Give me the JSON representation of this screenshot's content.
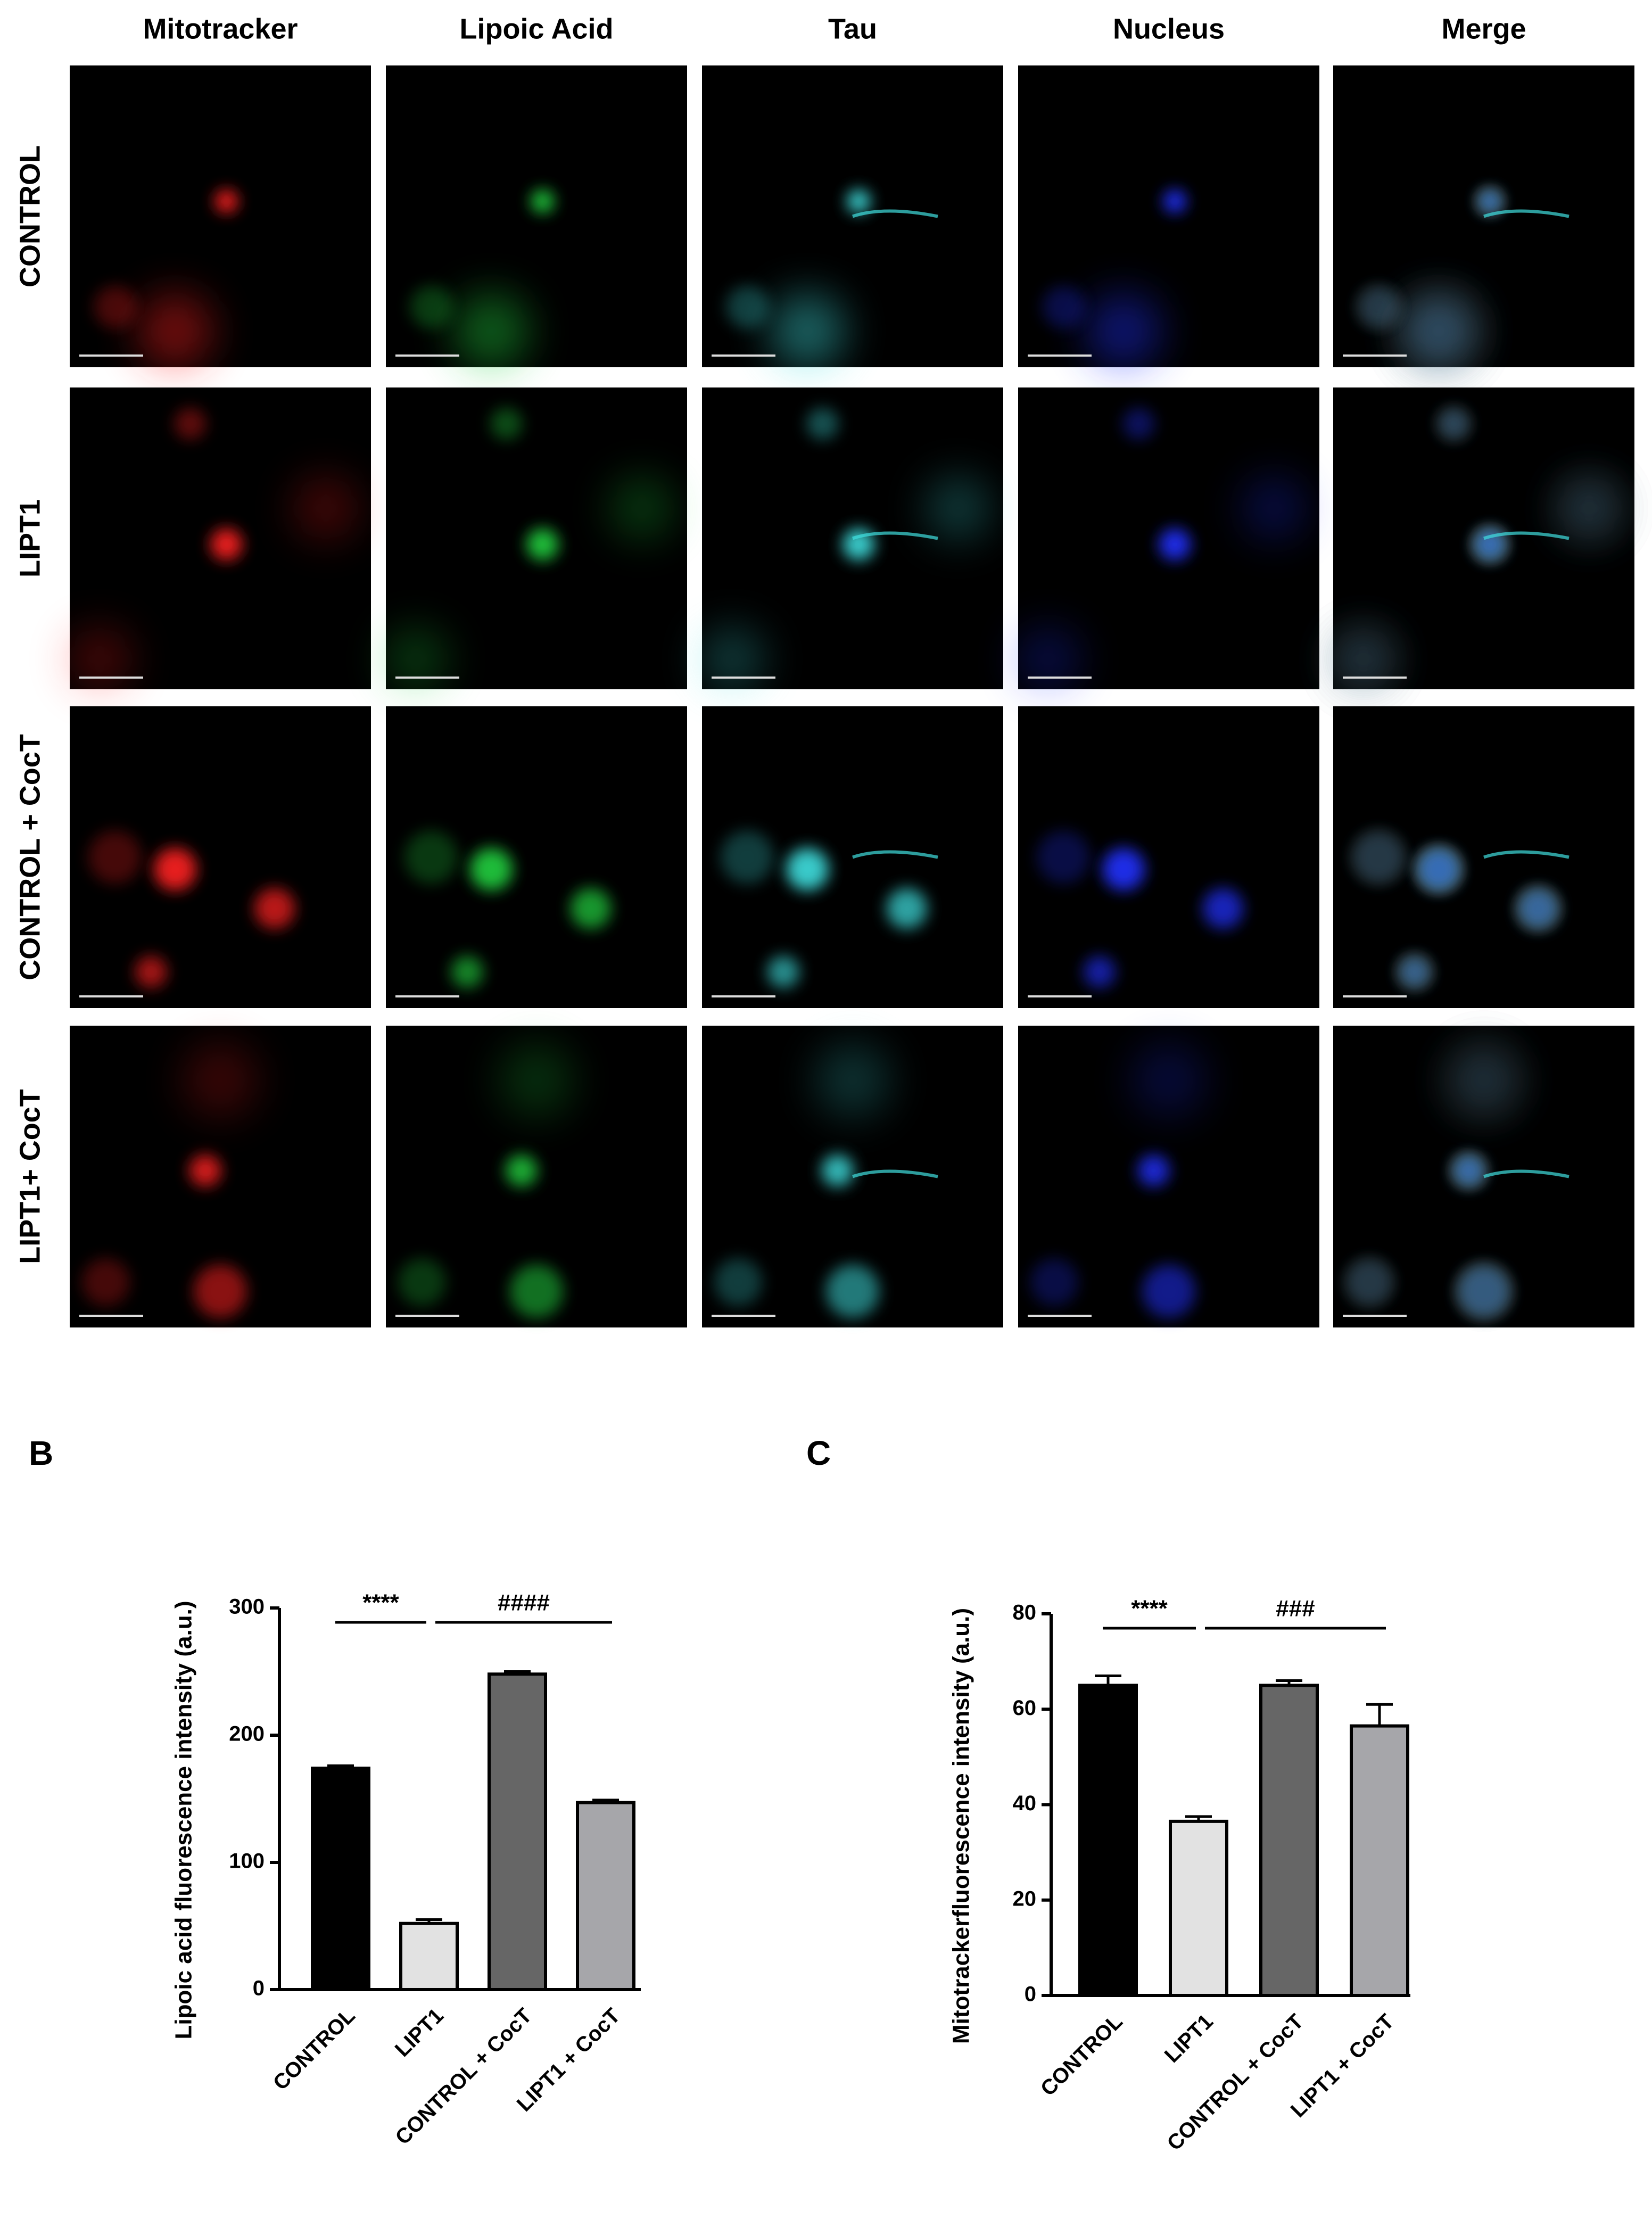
{
  "microscopy": {
    "columns": [
      "Mitotracker",
      "Lipoic Acid",
      "Tau",
      "Nucleus",
      "Merge"
    ],
    "rows": [
      "CONTROL",
      "LIPT1",
      "CONTROL + CocT",
      "LIPT1+ CocT"
    ]
  },
  "chart_data": [
    {
      "type": "bar",
      "label": "B",
      "ylabel": "Lipoic acid fluorescence intensity (a.u.)",
      "categories": [
        "CONTROL",
        "LIPT1",
        "CONTROL + CocT",
        "LIPT1 + CocT"
      ],
      "values": [
        174,
        52,
        248,
        147
      ],
      "errors": [
        2,
        3,
        2,
        2
      ],
      "colors": [
        "#000000",
        "#e2e2e2",
        "#666666",
        "#a6a6aa"
      ],
      "ylim": [
        0,
        300
      ],
      "yticks": [
        0,
        100,
        200,
        300
      ],
      "annotations": [
        "****",
        "####"
      ]
    },
    {
      "type": "bar",
      "label": "C",
      "ylabel": "Mitotrackerfluorescence intensity (a.u.)",
      "categories": [
        "CONTROL",
        "LIPT1",
        "CONTROL + CocT",
        "LIPT1 + CocT"
      ],
      "values": [
        65,
        36.5,
        65,
        56.5
      ],
      "errors": [
        2,
        1,
        1,
        4.5
      ],
      "colors": [
        "#000000",
        "#e2e2e2",
        "#666666",
        "#a6a6aa"
      ],
      "ylim": [
        0,
        80
      ],
      "yticks": [
        0,
        20,
        40,
        60,
        80
      ],
      "annotations": [
        "****",
        "###"
      ]
    }
  ]
}
